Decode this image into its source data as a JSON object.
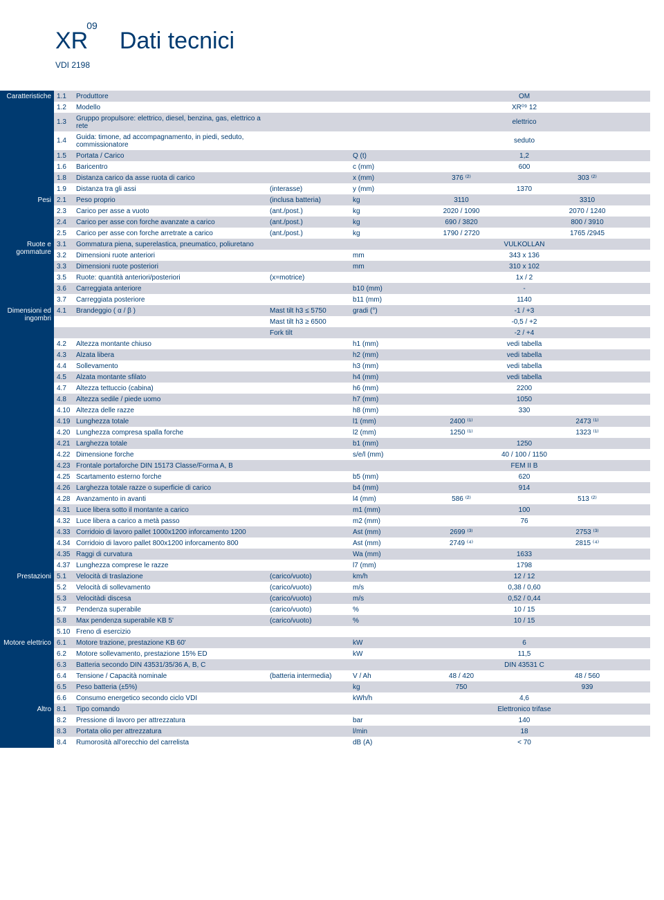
{
  "header": {
    "model_prefix": "XR",
    "model_sup": "09",
    "title": "Dati tecnici",
    "subtitle": "VDI 2198"
  },
  "colors": {
    "brand": "#003a70",
    "shade": "#d3d5de"
  },
  "sections": [
    {
      "label": "Caratteristiche",
      "rows": [
        {
          "num": "1.1",
          "desc": "Produttore",
          "qual": "",
          "unit": "",
          "v1": "",
          "v2": "",
          "vfull": "OM",
          "shaded": true
        },
        {
          "num": "1.2",
          "desc": "Modello",
          "qual": "",
          "unit": "",
          "v1": "",
          "v2": "",
          "vfull": "XR⁰⁹ 12",
          "shaded": false
        },
        {
          "num": "1.3",
          "desc": "Gruppo propulsore: elettrico, diesel, benzina, gas, elettrico a rete",
          "qual": "",
          "unit": "",
          "v1": "",
          "v2": "",
          "vfull": "elettrico",
          "shaded": true
        },
        {
          "num": "1.4",
          "desc": "Guida: timone, ad accompagnamento, in piedi, seduto, commissionatore",
          "qual": "",
          "unit": "",
          "v1": "",
          "v2": "",
          "vfull": "seduto",
          "shaded": false
        },
        {
          "num": "1.5",
          "desc": "Portata / Carico",
          "qual": "",
          "unit": "Q (t)",
          "v1": "",
          "v2": "",
          "vfull": "1,2",
          "shaded": true
        },
        {
          "num": "1.6",
          "desc": "Baricentro",
          "qual": "",
          "unit": "c (mm)",
          "v1": "",
          "v2": "",
          "vfull": "600",
          "shaded": false
        },
        {
          "num": "1.8",
          "desc": "Distanza carico da asse ruota di carico",
          "qual": "",
          "unit": "x (mm)",
          "v1": "376 ⁽²⁾",
          "v2": "303 ⁽²⁾",
          "vfull": "",
          "shaded": true
        },
        {
          "num": "1.9",
          "desc": "Distanza tra gli assi",
          "qual": "(interasse)",
          "unit": "y (mm)",
          "v1": "",
          "v2": "",
          "vfull": "1370",
          "shaded": false
        }
      ]
    },
    {
      "label": "Pesi",
      "rows": [
        {
          "num": "2.1",
          "desc": "Peso proprio",
          "qual": "(inclusa batteria)",
          "unit": "kg",
          "v1": "3110",
          "v2": "3310",
          "vfull": "",
          "shaded": true
        },
        {
          "num": "2.3",
          "desc": "Carico per asse a vuoto",
          "qual": "(ant./post.)",
          "unit": "kg",
          "v1": "2020 / 1090",
          "v2": "2070 / 1240",
          "vfull": "",
          "shaded": false
        },
        {
          "num": "2.4",
          "desc": "Carico per asse con forche avanzate a carico",
          "qual": "(ant./post.)",
          "unit": "kg",
          "v1": "690 / 3820",
          "v2": "800 / 3910",
          "vfull": "",
          "shaded": true
        },
        {
          "num": "2.5",
          "desc": "Carico per asse con forche arretrate a carico",
          "qual": "(ant./post.)",
          "unit": "kg",
          "v1": "1790 / 2720",
          "v2": "1765 /2945",
          "vfull": "",
          "shaded": false
        }
      ]
    },
    {
      "label": "Ruote e gommature",
      "rows": [
        {
          "num": "3.1",
          "desc": "Gommatura piena, superelastica, pneumatico, poliuretano",
          "qual": "",
          "unit": "",
          "v1": "",
          "v2": "",
          "vfull": "VULKOLLAN",
          "shaded": true
        },
        {
          "num": "3.2",
          "desc": "Dimensioni ruote anteriori",
          "qual": "",
          "unit": "mm",
          "v1": "",
          "v2": "",
          "vfull": "343 x 136",
          "shaded": false
        },
        {
          "num": "3.3",
          "desc": "Dimensioni ruote posteriori",
          "qual": "",
          "unit": "mm",
          "v1": "",
          "v2": "",
          "vfull": "310 x 102",
          "shaded": true
        },
        {
          "num": "3.5",
          "desc": "Ruote: quantità anteriori/posteriori",
          "qual": "(x=motrice)",
          "unit": "",
          "v1": "",
          "v2": "",
          "vfull": "1x / 2",
          "shaded": false
        },
        {
          "num": "3.6",
          "desc": "Carreggiata anteriore",
          "qual": "",
          "unit": "b10 (mm)",
          "v1": "",
          "v2": "",
          "vfull": "-",
          "shaded": true
        },
        {
          "num": "3.7",
          "desc": "Carreggiata posteriore",
          "qual": "",
          "unit": "b11 (mm)",
          "v1": "",
          "v2": "",
          "vfull": "1140",
          "shaded": false
        }
      ]
    },
    {
      "label": "Dimensioni ed ingombri",
      "rows": [
        {
          "num": "4.1",
          "desc": "Brandeggio ( α / β )",
          "qual": "Mast tilt h3 ≤ 5750",
          "unit": "gradi (°)",
          "v1": "",
          "v2": "",
          "vfull": "-1 / +3",
          "shaded": true
        },
        {
          "num": "",
          "desc": "",
          "qual": "Mast tilt h3 ≥ 6500",
          "unit": "",
          "v1": "",
          "v2": "",
          "vfull": "-0,5 / +2",
          "shaded": false
        },
        {
          "num": "",
          "desc": "",
          "qual": "Fork tilt",
          "unit": "",
          "v1": "",
          "v2": "",
          "vfull": "-2  /  +4",
          "shaded": true
        },
        {
          "num": "4.2",
          "desc": "Altezza montante chiuso",
          "qual": "",
          "unit": "h1 (mm)",
          "v1": "",
          "v2": "",
          "vfull": "vedi tabella",
          "shaded": false
        },
        {
          "num": "4.3",
          "desc": "Alzata libera",
          "qual": "",
          "unit": "h2 (mm)",
          "v1": "",
          "v2": "",
          "vfull": "vedi tabella",
          "shaded": true
        },
        {
          "num": "4.4",
          "desc": "Sollevamento",
          "qual": "",
          "unit": "h3 (mm)",
          "v1": "",
          "v2": "",
          "vfull": "vedi tabella",
          "shaded": false
        },
        {
          "num": "4.5",
          "desc": "Alzata montante sfilato",
          "qual": "",
          "unit": "h4 (mm)",
          "v1": "",
          "v2": "",
          "vfull": "vedi tabella",
          "shaded": true
        },
        {
          "num": "4.7",
          "desc": "Altezza tettuccio (cabina)",
          "qual": "",
          "unit": "h6 (mm)",
          "v1": "",
          "v2": "",
          "vfull": "2200",
          "shaded": false
        },
        {
          "num": "4.8",
          "desc": "Altezza sedile / piede uomo",
          "qual": "",
          "unit": "h7 (mm)",
          "v1": "",
          "v2": "",
          "vfull": "1050",
          "shaded": true
        },
        {
          "num": "4.10",
          "desc": "Altezza delle razze",
          "qual": "",
          "unit": "h8 (mm)",
          "v1": "",
          "v2": "",
          "vfull": "330",
          "shaded": false
        },
        {
          "num": "4.19",
          "desc": "Lunghezza totale",
          "qual": "",
          "unit": "l1 (mm)",
          "v1": "2400 ⁽¹⁾",
          "v2": "2473 ⁽¹⁾",
          "vfull": "",
          "shaded": true
        },
        {
          "num": "4.20",
          "desc": "Lunghezza compresa spalla forche",
          "qual": "",
          "unit": "l2 (mm)",
          "v1": "1250 ⁽¹⁾",
          "v2": "1323 ⁽¹⁾",
          "vfull": "",
          "shaded": false
        },
        {
          "num": "4.21",
          "desc": "Larghezza totale",
          "qual": "",
          "unit": "b1 (mm)",
          "v1": "",
          "v2": "",
          "vfull": "1250",
          "shaded": true
        },
        {
          "num": "4.22",
          "desc": "Dimensione forche",
          "qual": "",
          "unit": "s/e/l (mm)",
          "v1": "",
          "v2": "",
          "vfull": "40 / 100 / 1150",
          "shaded": false
        },
        {
          "num": "4.23",
          "desc": "Frontale portaforche DIN 15173 Classe/Forma A, B",
          "qual": "",
          "unit": "",
          "v1": "",
          "v2": "",
          "vfull": "FEM II B",
          "shaded": true
        },
        {
          "num": "4.25",
          "desc": "Scartamento esterno forche",
          "qual": "",
          "unit": "b5 (mm)",
          "v1": "",
          "v2": "",
          "vfull": "620",
          "shaded": false
        },
        {
          "num": "4.26",
          "desc": "Larghezza totale razze o superficie di carico",
          "qual": "",
          "unit": "b4 (mm)",
          "v1": "",
          "v2": "",
          "vfull": "914",
          "shaded": true
        },
        {
          "num": "4.28",
          "desc": "Avanzamento in avanti",
          "qual": "",
          "unit": "l4 (mm)",
          "v1": "586 ⁽²⁾",
          "v2": "513 ⁽²⁾",
          "vfull": "",
          "shaded": false
        },
        {
          "num": "4.31",
          "desc": "Luce libera sotto il montante a carico",
          "qual": "",
          "unit": "m1 (mm)",
          "v1": "",
          "v2": "",
          "vfull": "100",
          "shaded": true
        },
        {
          "num": "4.32",
          "desc": "Luce libera a carico a metà passo",
          "qual": "",
          "unit": "m2 (mm)",
          "v1": "",
          "v2": "",
          "vfull": "76",
          "shaded": false
        },
        {
          "num": "4.33",
          "desc": "Corridoio di lavoro pallet 1000x1200 inforcamento 1200",
          "qual": "",
          "unit": "Ast (mm)",
          "v1": "2699 ⁽³⁾",
          "v2": "2753 ⁽³⁾",
          "vfull": "",
          "shaded": true
        },
        {
          "num": "4.34",
          "desc": "Corridoio di lavoro pallet 800x1200 inforcamento 800",
          "qual": "",
          "unit": "Ast (mm)",
          "v1": "2749 ⁽⁴⁾",
          "v2": "2815 ⁽⁴⁾",
          "vfull": "",
          "shaded": false
        },
        {
          "num": "4.35",
          "desc": "Raggi di curvatura",
          "qual": "",
          "unit": "Wa (mm)",
          "v1": "",
          "v2": "",
          "vfull": "1633",
          "shaded": true
        },
        {
          "num": "4.37",
          "desc": "Lunghezza comprese le razze",
          "qual": "",
          "unit": "l7 (mm)",
          "v1": "",
          "v2": "",
          "vfull": "1798",
          "shaded": false
        }
      ]
    },
    {
      "label": "Prestazioni",
      "rows": [
        {
          "num": "5.1",
          "desc": "Velocità di traslazione",
          "qual": "(carico/vuoto)",
          "unit": "km/h",
          "v1": "",
          "v2": "",
          "vfull": "12 / 12",
          "shaded": true
        },
        {
          "num": "5.2",
          "desc": "Velocità di sollevamento",
          "qual": "(carico/vuoto)",
          "unit": "m/s",
          "v1": "",
          "v2": "",
          "vfull": "0,38 / 0,60",
          "shaded": false
        },
        {
          "num": "5.3",
          "desc": "Velocitàdi discesa",
          "qual": "(carico/vuoto)",
          "unit": "m/s",
          "v1": "",
          "v2": "",
          "vfull": "0,52 / 0,44",
          "shaded": true
        },
        {
          "num": "5.7",
          "desc": "Pendenza superabile",
          "qual": "(carico/vuoto)",
          "unit": "%",
          "v1": "",
          "v2": "",
          "vfull": "10 / 15",
          "shaded": false
        },
        {
          "num": "5.8",
          "desc": "Max pendenza superabile KB 5'",
          "qual": "(carico/vuoto)",
          "unit": "%",
          "v1": "",
          "v2": "",
          "vfull": "10 / 15",
          "shaded": true
        },
        {
          "num": "5.10",
          "desc": "Freno di esercizio",
          "qual": "",
          "unit": "",
          "v1": "",
          "v2": "",
          "vfull": "",
          "shaded": false
        }
      ]
    },
    {
      "label": "Motore elettrico",
      "rows": [
        {
          "num": "6.1",
          "desc": "Motore trazione, prestazione KB 60'",
          "qual": "",
          "unit": "kW",
          "v1": "",
          "v2": "",
          "vfull": "6",
          "shaded": true
        },
        {
          "num": "6.2",
          "desc": "Motore sollevamento, prestazione 15% ED",
          "qual": "",
          "unit": "kW",
          "v1": "",
          "v2": "",
          "vfull": "11,5",
          "shaded": false
        },
        {
          "num": "6.3",
          "desc": "Batteria secondo DIN 43531/35/36 A, B, C",
          "qual": "",
          "unit": "",
          "v1": "",
          "v2": "",
          "vfull": "DIN 43531 C",
          "shaded": true
        },
        {
          "num": "6.4",
          "desc": "Tensione / Capacità nominale",
          "qual": "(batteria intermedia)",
          "unit": "V / Ah",
          "v1": "48 / 420",
          "v2": "48 / 560",
          "vfull": "",
          "shaded": false
        },
        {
          "num": "6.5",
          "desc": "Peso batteria (±5%)",
          "qual": "",
          "unit": "kg",
          "v1": "750",
          "v2": "939",
          "vfull": "",
          "shaded": true
        },
        {
          "num": "6.6",
          "desc": "Consumo energetico secondo ciclo VDI",
          "qual": "",
          "unit": "kWh/h",
          "v1": "",
          "v2": "",
          "vfull": "4,6",
          "shaded": false
        }
      ]
    },
    {
      "label": "Altro",
      "rows": [
        {
          "num": "8.1",
          "desc": "Tipo comando",
          "qual": "",
          "unit": "",
          "v1": "",
          "v2": "",
          "vfull": "Elettronico trifase",
          "shaded": true
        },
        {
          "num": "8.2",
          "desc": "Pressione di lavoro per attrezzatura",
          "qual": "",
          "unit": "bar",
          "v1": "",
          "v2": "",
          "vfull": "140",
          "shaded": false
        },
        {
          "num": "8.3",
          "desc": "Portata olio per attrezzatura",
          "qual": "",
          "unit": "l/min",
          "v1": "",
          "v2": "",
          "vfull": "18",
          "shaded": true
        },
        {
          "num": "8.4",
          "desc": "Rumorosità all'orecchio del carrelista",
          "qual": "",
          "unit": "dB (A)",
          "v1": "",
          "v2": "",
          "vfull": "< 70",
          "shaded": false
        }
      ]
    }
  ],
  "section_breaks": {
    "Prestazioni": 22,
    "Motore elettrico": 4,
    "Altro": 4
  }
}
